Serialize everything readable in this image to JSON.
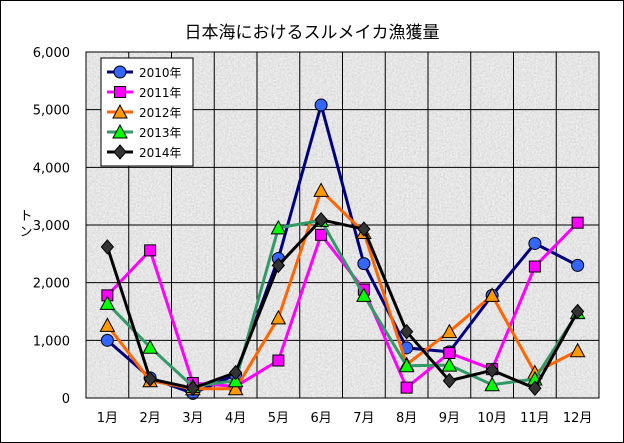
{
  "chart_data": {
    "type": "line",
    "title": "日本海におけるスルメイカ漁獲量",
    "ylabel": "トン",
    "xlabel": "",
    "ylim": [
      0,
      6000
    ],
    "yticks": [
      0,
      1000,
      2000,
      3000,
      4000,
      5000,
      6000
    ],
    "ytick_labels": [
      "0",
      "1,000",
      "2,000",
      "3,000",
      "4,000",
      "5,000",
      "6,000"
    ],
    "categories": [
      "1月",
      "2月",
      "3月",
      "4月",
      "5月",
      "6月",
      "7月",
      "8月",
      "9月",
      "10月",
      "11月",
      "12月"
    ],
    "grid": true,
    "legend_position": "top-left",
    "series": [
      {
        "name": "2010年",
        "color": "#000080",
        "marker": "circle",
        "marker_color": "#3366ff",
        "values": [
          1000,
          350,
          80,
          400,
          2420,
          5080,
          2330,
          870,
          800,
          1780,
          2680,
          2300
        ]
      },
      {
        "name": "2011年",
        "color": "#ff00ff",
        "marker": "square",
        "marker_color": "#ff00ff",
        "values": [
          1780,
          2560,
          260,
          200,
          650,
          2830,
          1880,
          180,
          780,
          500,
          2280,
          3040
        ]
      },
      {
        "name": "2012年",
        "color": "#ff6600",
        "marker": "triangle",
        "marker_color": "#ff9900",
        "values": [
          1260,
          300,
          160,
          160,
          1390,
          3600,
          2870,
          580,
          1150,
          1780,
          440,
          820
        ]
      },
      {
        "name": "2013年",
        "color": "#339966",
        "marker": "triangle",
        "marker_color": "#00ff00",
        "values": [
          1640,
          880,
          200,
          300,
          2950,
          3080,
          1780,
          560,
          570,
          230,
          330,
          1480
        ]
      },
      {
        "name": "2014年",
        "color": "#000000",
        "marker": "diamond",
        "marker_color": "#333333",
        "values": [
          2620,
          330,
          170,
          440,
          2300,
          3090,
          2930,
          1150,
          300,
          480,
          170,
          1500
        ]
      }
    ]
  }
}
